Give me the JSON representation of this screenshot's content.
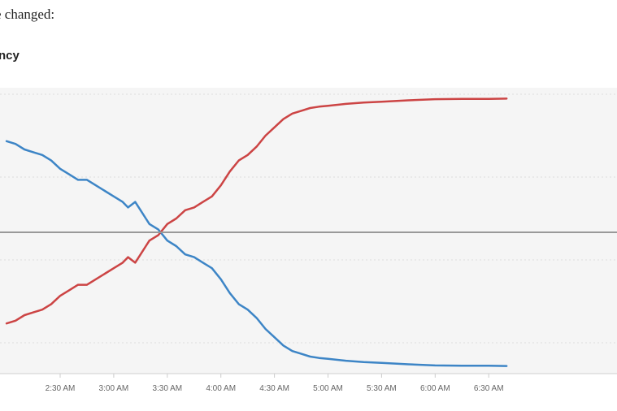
{
  "page": {
    "intro_text": "e changed:",
    "heading": "ncy"
  },
  "chart_data": {
    "type": "line",
    "title": "",
    "xlabel": "",
    "ylabel": "",
    "grid": true,
    "reference_line": 50,
    "ylim": [
      0,
      100
    ],
    "xlim": [
      "2:00 AM",
      "6:40 AM"
    ],
    "x_ticks": [
      "2:30 AM",
      "3:00 AM",
      "3:30 AM",
      "4:00 AM",
      "4:30 AM",
      "5:00 AM",
      "5:30 AM",
      "6:00 AM",
      "6:30 AM"
    ],
    "colors": {
      "series_a": "#3d85c6",
      "series_b": "#cc4444",
      "reference": "#999999",
      "grid": "#dddddd",
      "plot_bg": "#f5f5f5"
    },
    "series": [
      {
        "color": "#3d85c6",
        "x": [
          "2:00",
          "2:05",
          "2:10",
          "2:15",
          "2:20",
          "2:25",
          "2:30",
          "2:35",
          "2:40",
          "2:45",
          "2:50",
          "2:55",
          "3:00",
          "3:05",
          "3:08",
          "3:12",
          "3:15",
          "3:18",
          "3:20",
          "3:25",
          "3:30",
          "3:35",
          "3:40",
          "3:45",
          "3:50",
          "3:55",
          "4:00",
          "4:05",
          "4:10",
          "4:15",
          "4:20",
          "4:25",
          "4:30",
          "4:35",
          "4:40",
          "4:45",
          "4:50",
          "4:55",
          "5:00",
          "5:10",
          "5:20",
          "5:30",
          "5:45",
          "6:00",
          "6:15",
          "6:30",
          "6:40"
        ],
        "values": [
          83,
          82,
          80,
          79,
          78,
          76,
          73,
          71,
          69,
          69,
          67,
          65,
          63,
          61,
          59,
          61,
          58,
          55,
          53,
          51,
          47,
          45,
          42,
          41,
          39,
          37,
          33,
          28,
          24,
          22,
          19,
          15,
          12,
          9,
          7,
          6,
          5,
          4.5,
          4.2,
          3.5,
          3,
          2.7,
          2.2,
          1.8,
          1.7,
          1.7,
          1.6
        ]
      },
      {
        "color": "#cc4444",
        "x": [
          "2:00",
          "2:05",
          "2:10",
          "2:15",
          "2:20",
          "2:25",
          "2:30",
          "2:35",
          "2:40",
          "2:45",
          "2:50",
          "2:55",
          "3:00",
          "3:05",
          "3:08",
          "3:12",
          "3:15",
          "3:18",
          "3:20",
          "3:25",
          "3:30",
          "3:35",
          "3:40",
          "3:45",
          "3:50",
          "3:55",
          "4:00",
          "4:05",
          "4:10",
          "4:15",
          "4:20",
          "4:25",
          "4:30",
          "4:35",
          "4:40",
          "4:45",
          "4:50",
          "4:55",
          "5:00",
          "5:10",
          "5:20",
          "5:30",
          "5:45",
          "6:00",
          "6:15",
          "6:30",
          "6:40"
        ],
        "values": [
          17,
          18,
          20,
          21,
          22,
          24,
          27,
          29,
          31,
          31,
          33,
          35,
          37,
          39,
          41,
          39,
          42,
          45,
          47,
          49,
          53,
          55,
          58,
          59,
          61,
          63,
          67,
          72,
          76,
          78,
          81,
          85,
          88,
          91,
          93,
          94,
          95,
          95.5,
          95.8,
          96.5,
          97,
          97.3,
          97.8,
          98.2,
          98.3,
          98.3,
          98.4
        ]
      }
    ]
  }
}
